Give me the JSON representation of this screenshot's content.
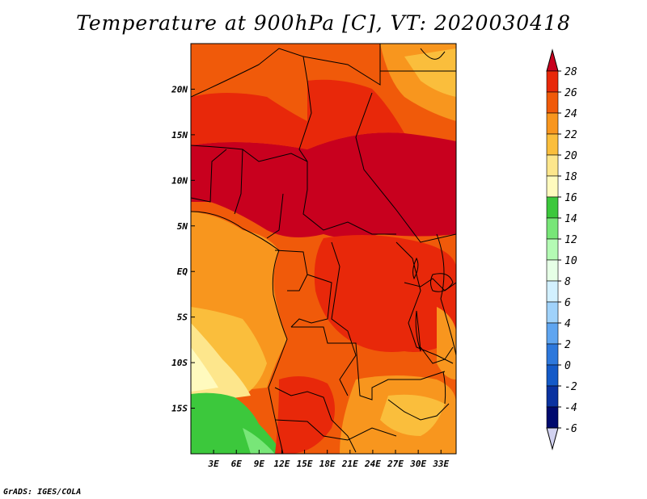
{
  "title": "Temperature at 900hPa [C], VT: 2020030418",
  "footer": "GrADS: IGES/COLA",
  "map": {
    "lon_range": [
      0,
      35
    ],
    "lat_range": [
      -20,
      25
    ],
    "lon_ticks": [
      "3E",
      "6E",
      "9E",
      "12E",
      "15E",
      "18E",
      "21E",
      "24E",
      "27E",
      "30E",
      "33E"
    ],
    "lat_ticks": [
      "20N",
      "15N",
      "10N",
      "5N",
      "EQ",
      "5S",
      "10S",
      "15S"
    ]
  },
  "colorbar": {
    "levels": [
      "28",
      "26",
      "24",
      "22",
      "20",
      "18",
      "16",
      "14",
      "12",
      "10",
      "8",
      "6",
      "4",
      "2",
      "0",
      "-2",
      "-4",
      "-6"
    ],
    "colors": [
      "#c8001e",
      "#e8280a",
      "#f05a0a",
      "#f8961e",
      "#fabe3c",
      "#fde68c",
      "#fffabe",
      "#3cc83c",
      "#78e678",
      "#b4fab4",
      "#e6ffe6",
      "#d2f0ff",
      "#a0d2fa",
      "#5fa5f0",
      "#2d78dc",
      "#145ac8",
      "#0a32a0",
      "#000a6e",
      "#d2d2f0"
    ]
  },
  "colors": {
    "ocean_cool": "#fde68c",
    "hot": "#c8001e",
    "warm": "#e8280a",
    "green": "#3cc83c"
  }
}
